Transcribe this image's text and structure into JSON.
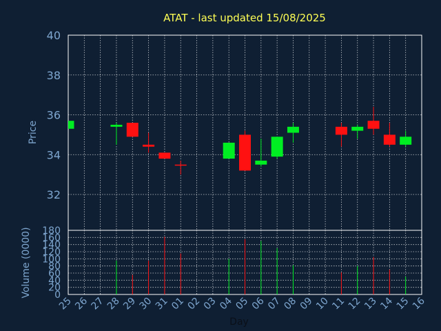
{
  "colors": {
    "background": "#0f1f33",
    "plot_border": "#ffffff",
    "grid": "#ffffff",
    "title": "#ffff55",
    "ticks": "#7ea6cf",
    "up": "#00ee22",
    "down": "#ff1111",
    "neutral": "#ff1111"
  },
  "chart_data": {
    "type": "candlestick",
    "title": "ATAT - last updated 15/08/2025",
    "price_ylabel": "Price",
    "volume_ylabel": "Volume (0000)",
    "xlabel": "Day",
    "price_ylim": [
      30.2,
      40
    ],
    "price_yticks": [
      32,
      34,
      36,
      38,
      40
    ],
    "volume_ylim": [
      0,
      180
    ],
    "volume_yticks": [
      0,
      20,
      40,
      60,
      80,
      100,
      120,
      140,
      160,
      180
    ],
    "grid": true,
    "x_tick_labels": [
      "25",
      "26",
      "27",
      "28",
      "29",
      "30",
      "31",
      "01",
      "02",
      "03",
      "04",
      "05",
      "06",
      "07",
      "08",
      "09",
      "10",
      "11",
      "12",
      "13",
      "14",
      "15",
      "16"
    ],
    "candles": [
      {
        "day": "25",
        "open": 35.3,
        "close": 35.7,
        "high": 35.7,
        "low": 35.3,
        "volume": 0
      },
      {
        "day": "28",
        "open": 35.4,
        "close": 35.5,
        "high": 35.6,
        "low": 34.5,
        "volume": 95
      },
      {
        "day": "29",
        "open": 35.6,
        "close": 34.9,
        "high": 35.6,
        "low": 34.9,
        "volume": 55
      },
      {
        "day": "30",
        "open": 34.5,
        "close": 34.4,
        "high": 35.1,
        "low": 34.1,
        "volume": 95
      },
      {
        "day": "31",
        "open": 34.1,
        "close": 33.8,
        "high": 34.1,
        "low": 33.8,
        "volume": 162
      },
      {
        "day": "01",
        "open": 33.5,
        "close": 33.5,
        "high": 33.7,
        "low": 33.0,
        "volume": 115
      },
      {
        "day": "04",
        "open": 33.8,
        "close": 34.6,
        "high": 34.6,
        "low": 33.8,
        "volume": 100
      },
      {
        "day": "05",
        "open": 35.0,
        "close": 33.2,
        "high": 35.2,
        "low": 33.2,
        "volume": 155
      },
      {
        "day": "06",
        "open": 33.5,
        "close": 33.7,
        "high": 34.8,
        "low": 33.4,
        "volume": 150
      },
      {
        "day": "07",
        "open": 33.9,
        "close": 34.9,
        "high": 34.9,
        "low": 33.8,
        "volume": 130
      },
      {
        "day": "08",
        "open": 35.1,
        "close": 35.4,
        "high": 35.6,
        "low": 34.6,
        "volume": 82
      },
      {
        "day": "11",
        "open": 35.4,
        "close": 35.0,
        "high": 35.6,
        "low": 34.4,
        "volume": 62
      },
      {
        "day": "12",
        "open": 35.2,
        "close": 35.4,
        "high": 35.5,
        "low": 34.8,
        "volume": 80
      },
      {
        "day": "13",
        "open": 35.7,
        "close": 35.3,
        "high": 36.4,
        "low": 35.0,
        "volume": 105
      },
      {
        "day": "14",
        "open": 35.0,
        "close": 34.5,
        "high": 35.6,
        "low": 34.4,
        "volume": 70
      },
      {
        "day": "15",
        "open": 34.5,
        "close": 34.9,
        "high": 35.2,
        "low": 34.4,
        "volume": 50
      }
    ]
  }
}
